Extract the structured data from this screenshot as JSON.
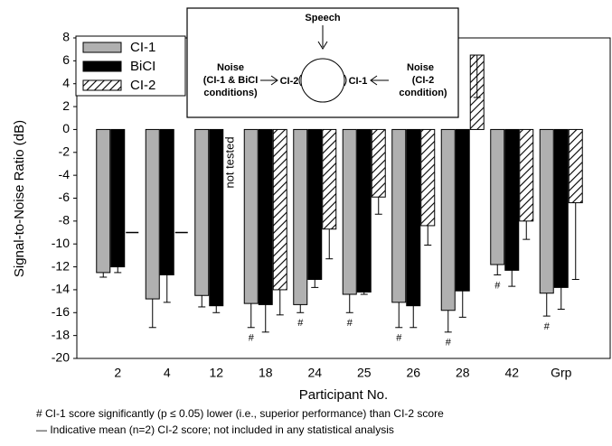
{
  "chart_data": {
    "type": "bar",
    "y_label": "Signal-to-Noise Ratio (dB)",
    "x_label": "Participant No.",
    "categories": [
      "2",
      "4",
      "12",
      "18",
      "24",
      "25",
      "26",
      "28",
      "42",
      "Grp"
    ],
    "ylim": [
      -20,
      8
    ],
    "yticks": [
      8,
      6,
      4,
      2,
      0,
      -2,
      -4,
      -6,
      -8,
      -10,
      -12,
      -14,
      -16,
      -18,
      -20
    ],
    "grid": false,
    "legend": "top-left",
    "series": [
      {
        "name": "CI-1",
        "color": "#b0b0b0",
        "pattern": "solid",
        "values": [
          -12.5,
          -14.8,
          -14.5,
          -15.2,
          -15.3,
          -14.4,
          -15.1,
          -15.8,
          -11.8,
          -14.3
        ],
        "errors": [
          0.4,
          2.5,
          1.0,
          2.1,
          0.7,
          1.6,
          2.2,
          1.9,
          0.9,
          2.0
        ]
      },
      {
        "name": "BiCI",
        "color": "#000000",
        "pattern": "solid",
        "values": [
          -12.0,
          -12.7,
          -15.4,
          -15.3,
          -13.1,
          -14.2,
          -15.4,
          -14.1,
          -12.3,
          -13.8
        ],
        "errors": [
          0.5,
          2.4,
          0.6,
          2.4,
          0.7,
          0.2,
          1.9,
          2.3,
          1.4,
          1.9
        ]
      },
      {
        "name": "CI-2",
        "color": "#000000",
        "pattern": "hatch",
        "values": [
          null,
          null,
          null,
          -14.0,
          -8.7,
          -5.9,
          -8.4,
          6.5,
          -8.0,
          -6.4
        ],
        "errors": [
          null,
          null,
          null,
          2.2,
          2.6,
          1.5,
          1.7,
          3.7,
          1.6,
          6.7
        ],
        "indicative_values": [
          -9,
          -9,
          null,
          null,
          null,
          null,
          null,
          null,
          null,
          null
        ]
      }
    ],
    "sig_marks": [
      null,
      null,
      null,
      "#",
      "#",
      "#",
      "#",
      "#",
      "#",
      "#"
    ],
    "not_tested_label": "not tested",
    "footnotes": [
      "#  CI-1 score significantly (p ≤ 0.05) lower (i.e., superior performance) than CI-2 score",
      "—  Indicative mean (n=2) CI-2 score; not included in any statistical analysis"
    ]
  },
  "diagram": {
    "speech": "Speech",
    "noise_left": [
      "Noise",
      "(CI-1 & BiCI",
      "conditions)"
    ],
    "ear_left": "CI-2",
    "ear_right": "CI-1",
    "noise_right": [
      "Noise",
      "(CI-2",
      "condition)"
    ]
  }
}
